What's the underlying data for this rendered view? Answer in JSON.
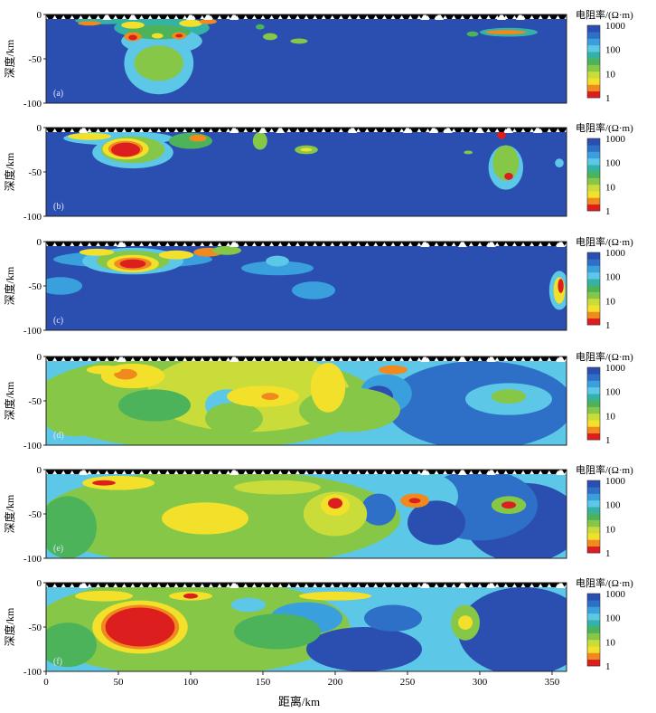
{
  "figure": {
    "xlabel": "距离/km",
    "xticks": [
      "0",
      "50",
      "100",
      "150",
      "200",
      "250",
      "300",
      "350"
    ],
    "xlim": [
      0,
      360
    ]
  },
  "colors": {
    "scale": [
      "#dc1e1e",
      "#f08a1e",
      "#f2e02a",
      "#c9dc3a",
      "#86c748",
      "#4cb35a",
      "#33b3a6",
      "#5cc7e6",
      "#3aa0dd",
      "#2e6fc7",
      "#2a4fb0"
    ]
  },
  "chart_data": [
    {
      "type": "heatmap",
      "panel_label": "(a)",
      "ylabel": "深度/km",
      "yticks": [
        "0",
        "-50",
        "-100"
      ],
      "ylim": [
        -100,
        0
      ],
      "colorbar": {
        "title": "电阻率/(Ω·m)",
        "ticks": [
          "1000",
          "100",
          "10",
          "1"
        ],
        "scale": "log",
        "range": [
          1,
          1000
        ]
      },
      "stations_km": [
        42,
        60,
        100,
        112,
        130,
        262,
        272,
        315,
        328
      ],
      "background": "#2a4fb0",
      "features": [
        {
          "x": 40,
          "y": -7,
          "rx": 20,
          "ry": 4,
          "fill": "#33b3a6"
        },
        {
          "x": 30,
          "y": -10,
          "rx": 8,
          "ry": 2.5,
          "fill": "#f08a1e"
        },
        {
          "x": 80,
          "y": -15,
          "rx": 33,
          "ry": 13,
          "fill": "#33b3a6"
        },
        {
          "x": 80,
          "y": -30,
          "rx": 28,
          "ry": 15,
          "fill": "#5cc7e6"
        },
        {
          "x": 78,
          "y": -55,
          "rx": 24,
          "ry": 35,
          "fill": "#5cc7e6"
        },
        {
          "x": 78,
          "y": -55,
          "rx": 17,
          "ry": 20,
          "fill": "#86c748"
        },
        {
          "x": 78,
          "y": -20,
          "rx": 22,
          "ry": 8,
          "fill": "#4cb35a"
        },
        {
          "x": 60,
          "y": -12,
          "rx": 8,
          "ry": 4,
          "fill": "#f2e02a"
        },
        {
          "x": 60,
          "y": -25,
          "rx": 6,
          "ry": 5,
          "fill": "#f08a1e"
        },
        {
          "x": 60,
          "y": -26,
          "rx": 3,
          "ry": 3,
          "fill": "#dc1e1e"
        },
        {
          "x": 77,
          "y": -24,
          "rx": 4,
          "ry": 3,
          "fill": "#f2e02a"
        },
        {
          "x": 92,
          "y": -24,
          "rx": 5,
          "ry": 4,
          "fill": "#f08a1e"
        },
        {
          "x": 92,
          "y": -24,
          "rx": 2.5,
          "ry": 2,
          "fill": "#dc1e1e"
        },
        {
          "x": 100,
          "y": -10,
          "rx": 8,
          "ry": 4,
          "fill": "#f2e02a"
        },
        {
          "x": 112,
          "y": -8,
          "rx": 6,
          "ry": 3,
          "fill": "#f08a1e"
        },
        {
          "x": 148,
          "y": -14,
          "rx": 3,
          "ry": 3,
          "fill": "#4cb35a"
        },
        {
          "x": 155,
          "y": -25,
          "rx": 5,
          "ry": 4,
          "fill": "#86c748"
        },
        {
          "x": 175,
          "y": -30,
          "rx": 6,
          "ry": 3,
          "fill": "#86c748"
        },
        {
          "x": 295,
          "y": -22,
          "rx": 4,
          "ry": 3,
          "fill": "#4cb35a"
        },
        {
          "x": 320,
          "y": -20,
          "rx": 20,
          "ry": 5,
          "fill": "#33b3a6"
        },
        {
          "x": 318,
          "y": -20,
          "rx": 14,
          "ry": 2.5,
          "fill": "#f08a1e"
        }
      ]
    },
    {
      "type": "heatmap",
      "panel_label": "(b)",
      "ylabel": "深度/km",
      "yticks": [
        "0",
        "-50",
        "-100"
      ],
      "ylim": [
        -100,
        0
      ],
      "colorbar": {
        "title": "电阻率/(Ω·m)",
        "ticks": [
          "1000",
          "100",
          "10",
          "1"
        ],
        "scale": "log",
        "range": [
          1,
          1000
        ]
      },
      "stations_km": [
        26,
        130,
        150,
        162,
        212,
        250,
        268,
        278,
        300,
        320,
        340
      ],
      "background": "#2a4fb0",
      "features": [
        {
          "x": 50,
          "y": -12,
          "rx": 38,
          "ry": 8,
          "fill": "#5cc7e6"
        },
        {
          "x": 60,
          "y": -28,
          "rx": 28,
          "ry": 18,
          "fill": "#5cc7e6"
        },
        {
          "x": 60,
          "y": -25,
          "rx": 22,
          "ry": 15,
          "fill": "#86c748"
        },
        {
          "x": 55,
          "y": -24,
          "rx": 16,
          "ry": 12,
          "fill": "#f2e02a"
        },
        {
          "x": 55,
          "y": -24,
          "rx": 12,
          "ry": 9,
          "fill": "#f08a1e"
        },
        {
          "x": 55,
          "y": -25,
          "rx": 10,
          "ry": 8,
          "fill": "#dc1e1e"
        },
        {
          "x": 30,
          "y": -10,
          "rx": 15,
          "ry": 4,
          "fill": "#f2e02a"
        },
        {
          "x": 100,
          "y": -15,
          "rx": 15,
          "ry": 9,
          "fill": "#4cb35a"
        },
        {
          "x": 105,
          "y": -12,
          "rx": 6,
          "ry": 4,
          "fill": "#f08a1e"
        },
        {
          "x": 148,
          "y": -15,
          "rx": 5,
          "ry": 10,
          "fill": "#86c748"
        },
        {
          "x": 180,
          "y": -25,
          "rx": 8,
          "ry": 5,
          "fill": "#86c748"
        },
        {
          "x": 180,
          "y": -25,
          "rx": 4,
          "ry": 2,
          "fill": "#f2e02a"
        },
        {
          "x": 292,
          "y": -28,
          "rx": 3,
          "ry": 2,
          "fill": "#86c748"
        },
        {
          "x": 318,
          "y": -45,
          "rx": 12,
          "ry": 25,
          "fill": "#5cc7e6"
        },
        {
          "x": 318,
          "y": -40,
          "rx": 9,
          "ry": 20,
          "fill": "#86c748"
        },
        {
          "x": 320,
          "y": -55,
          "rx": 3,
          "ry": 4,
          "fill": "#dc1e1e"
        },
        {
          "x": 315,
          "y": -8,
          "rx": 3,
          "ry": 5,
          "fill": "#dc1e1e"
        },
        {
          "x": 355,
          "y": -40,
          "rx": 3,
          "ry": 5,
          "fill": "#5cc7e6"
        }
      ]
    },
    {
      "type": "heatmap",
      "panel_label": "(c)",
      "ylabel": "深度/km",
      "yticks": [
        "0",
        "-50",
        "-100"
      ],
      "ylim": [
        -100,
        0
      ],
      "colorbar": {
        "title": "电阻率/(Ω·m)",
        "ticks": [
          "1000",
          "100",
          "10",
          "1"
        ],
        "scale": "log",
        "range": [
          1,
          1000
        ]
      },
      "stations_km": [
        52,
        130,
        262,
        288,
        308,
        356
      ],
      "background": "#2a4fb0",
      "features": [
        {
          "x": 60,
          "y": -20,
          "rx": 55,
          "ry": 10,
          "fill": "#3aa0dd"
        },
        {
          "x": 10,
          "y": -50,
          "rx": 15,
          "ry": 10,
          "fill": "#3aa0dd"
        },
        {
          "x": 160,
          "y": -30,
          "rx": 25,
          "ry": 8,
          "fill": "#3aa0dd"
        },
        {
          "x": 185,
          "y": -55,
          "rx": 15,
          "ry": 10,
          "fill": "#3aa0dd"
        },
        {
          "x": 60,
          "y": -22,
          "rx": 35,
          "ry": 15,
          "fill": "#5cc7e6"
        },
        {
          "x": 60,
          "y": -22,
          "rx": 25,
          "ry": 12,
          "fill": "#86c748"
        },
        {
          "x": 60,
          "y": -25,
          "rx": 18,
          "ry": 10,
          "fill": "#f2e02a"
        },
        {
          "x": 60,
          "y": -25,
          "rx": 13,
          "ry": 7,
          "fill": "#f08a1e"
        },
        {
          "x": 60,
          "y": -25,
          "rx": 9,
          "ry": 5,
          "fill": "#dc1e1e"
        },
        {
          "x": 35,
          "y": -12,
          "rx": 12,
          "ry": 4,
          "fill": "#f2e02a"
        },
        {
          "x": 90,
          "y": -15,
          "rx": 12,
          "ry": 5,
          "fill": "#f2e02a"
        },
        {
          "x": 112,
          "y": -12,
          "rx": 10,
          "ry": 5,
          "fill": "#f08a1e"
        },
        {
          "x": 125,
          "y": -10,
          "rx": 10,
          "ry": 5,
          "fill": "#86c748"
        },
        {
          "x": 160,
          "y": -22,
          "rx": 8,
          "ry": 6,
          "fill": "#5cc7e6"
        },
        {
          "x": 355,
          "y": -55,
          "rx": 7,
          "ry": 22,
          "fill": "#5cc7e6"
        },
        {
          "x": 355,
          "y": -55,
          "rx": 4,
          "ry": 15,
          "fill": "#f2e02a"
        },
        {
          "x": 356,
          "y": -50,
          "rx": 2,
          "ry": 8,
          "fill": "#dc1e1e"
        }
      ]
    },
    {
      "type": "heatmap",
      "panel_label": "(d)",
      "ylabel": "深度/km",
      "yticks": [
        "0",
        "-50",
        "-100"
      ],
      "ylim": [
        -100,
        0
      ],
      "colorbar": {
        "title": "电阻率/(Ω·m)",
        "ticks": [
          "1000",
          "100",
          "10",
          "1"
        ],
        "scale": "log",
        "range": [
          1,
          1000
        ]
      },
      "stations_km": [
        52,
        130,
        262,
        288,
        308,
        356
      ],
      "background": "#5cc7e6",
      "features": [
        {
          "x": 110,
          "y": -50,
          "rx": 120,
          "ry": 55,
          "fill": "#86c748"
        },
        {
          "x": 140,
          "y": -40,
          "rx": 70,
          "ry": 45,
          "fill": "#c9dc3a"
        },
        {
          "x": 300,
          "y": -55,
          "rx": 65,
          "ry": 50,
          "fill": "#2e6fc7"
        },
        {
          "x": 320,
          "y": -48,
          "rx": 30,
          "ry": 18,
          "fill": "#5cc7e6"
        },
        {
          "x": 320,
          "y": -45,
          "rx": 12,
          "ry": 8,
          "fill": "#86c748"
        },
        {
          "x": 235,
          "y": -42,
          "rx": 18,
          "ry": 22,
          "fill": "#3aa0dd"
        },
        {
          "x": 230,
          "y": -45,
          "rx": 10,
          "ry": 12,
          "fill": "#2a4fb0"
        },
        {
          "x": 210,
          "y": -60,
          "rx": 35,
          "ry": 25,
          "fill": "#86c748"
        },
        {
          "x": 125,
          "y": -55,
          "rx": 15,
          "ry": 18,
          "fill": "#5cc7e6"
        },
        {
          "x": 130,
          "y": -70,
          "rx": 20,
          "ry": 18,
          "fill": "#86c748"
        },
        {
          "x": 60,
          "y": -22,
          "rx": 22,
          "ry": 14,
          "fill": "#f2e02a"
        },
        {
          "x": 55,
          "y": -20,
          "rx": 8,
          "ry": 6,
          "fill": "#f08a1e"
        },
        {
          "x": 40,
          "y": -15,
          "rx": 12,
          "ry": 5,
          "fill": "#f2e02a"
        },
        {
          "x": 195,
          "y": -35,
          "rx": 12,
          "ry": 28,
          "fill": "#f2e02a"
        },
        {
          "x": 150,
          "y": -45,
          "rx": 25,
          "ry": 12,
          "fill": "#f2e02a"
        },
        {
          "x": 155,
          "y": -45,
          "rx": 6,
          "ry": 4,
          "fill": "#f08a1e"
        },
        {
          "x": 240,
          "y": -15,
          "rx": 10,
          "ry": 5,
          "fill": "#f08a1e"
        },
        {
          "x": 75,
          "y": -55,
          "rx": 25,
          "ry": 18,
          "fill": "#4cb35a"
        },
        {
          "x": 20,
          "y": -60,
          "rx": 25,
          "ry": 30,
          "fill": "#86c748"
        }
      ]
    },
    {
      "type": "heatmap",
      "panel_label": "(e)",
      "ylabel": "深度/km",
      "yticks": [
        "0",
        "-50",
        "-100"
      ],
      "ylim": [
        -100,
        0
      ],
      "colorbar": {
        "title": "电阻率/(Ω·m)",
        "ticks": [
          "1000",
          "100",
          "10",
          "1"
        ],
        "scale": "log",
        "range": [
          1,
          1000
        ]
      },
      "stations_km": [
        26,
        130,
        262,
        288,
        308,
        356
      ],
      "background": "#5cc7e6",
      "features": [
        {
          "x": 120,
          "y": -55,
          "rx": 125,
          "ry": 55,
          "fill": "#86c748"
        },
        {
          "x": 330,
          "y": -60,
          "rx": 40,
          "ry": 45,
          "fill": "#2a4fb0"
        },
        {
          "x": 300,
          "y": -40,
          "rx": 40,
          "ry": 40,
          "fill": "#2e6fc7"
        },
        {
          "x": 265,
          "y": -30,
          "rx": 20,
          "ry": 25,
          "fill": "#5cc7e6"
        },
        {
          "x": 270,
          "y": -60,
          "rx": 20,
          "ry": 25,
          "fill": "#2a4fb0"
        },
        {
          "x": 230,
          "y": -45,
          "rx": 12,
          "ry": 18,
          "fill": "#2e6fc7"
        },
        {
          "x": 200,
          "y": -50,
          "rx": 22,
          "ry": 25,
          "fill": "#c9dc3a"
        },
        {
          "x": 200,
          "y": -40,
          "rx": 10,
          "ry": 12,
          "fill": "#f2e02a"
        },
        {
          "x": 200,
          "y": -38,
          "rx": 5,
          "ry": 6,
          "fill": "#dc1e1e"
        },
        {
          "x": 255,
          "y": -35,
          "rx": 10,
          "ry": 8,
          "fill": "#f08a1e"
        },
        {
          "x": 255,
          "y": -35,
          "rx": 4,
          "ry": 3,
          "fill": "#dc1e1e"
        },
        {
          "x": 320,
          "y": -40,
          "rx": 12,
          "ry": 10,
          "fill": "#86c748"
        },
        {
          "x": 320,
          "y": -40,
          "rx": 5,
          "ry": 4,
          "fill": "#dc1e1e"
        },
        {
          "x": 110,
          "y": -55,
          "rx": 30,
          "ry": 18,
          "fill": "#f2e02a"
        },
        {
          "x": 50,
          "y": -15,
          "rx": 25,
          "ry": 8,
          "fill": "#f2e02a"
        },
        {
          "x": 40,
          "y": -15,
          "rx": 8,
          "ry": 3,
          "fill": "#dc1e1e"
        },
        {
          "x": 160,
          "y": -20,
          "rx": 30,
          "ry": 8,
          "fill": "#c9dc3a"
        },
        {
          "x": 15,
          "y": -65,
          "rx": 20,
          "ry": 35,
          "fill": "#4cb35a"
        }
      ]
    },
    {
      "type": "heatmap",
      "panel_label": "(f)",
      "ylabel": "深度/km",
      "yticks": [
        "0",
        "-50",
        "-100"
      ],
      "ylim": [
        -100,
        0
      ],
      "colorbar": {
        "title": "电阻率/(Ω·m)",
        "ticks": [
          "1000",
          "100",
          "10",
          "1"
        ],
        "scale": "log",
        "range": [
          1,
          1000
        ]
      },
      "stations_km": [
        26,
        130,
        262,
        288,
        308,
        356
      ],
      "background": "#5cc7e6",
      "features": [
        {
          "x": 100,
          "y": -50,
          "rx": 110,
          "ry": 55,
          "fill": "#86c748"
        },
        {
          "x": 330,
          "y": -55,
          "rx": 45,
          "ry": 50,
          "fill": "#2a4fb0"
        },
        {
          "x": 220,
          "y": -75,
          "rx": 40,
          "ry": 25,
          "fill": "#2a4fb0"
        },
        {
          "x": 180,
          "y": -40,
          "rx": 25,
          "ry": 18,
          "fill": "#3aa0dd"
        },
        {
          "x": 240,
          "y": -40,
          "rx": 20,
          "ry": 15,
          "fill": "#2e6fc7"
        },
        {
          "x": 290,
          "y": -45,
          "rx": 10,
          "ry": 20,
          "fill": "#86c748"
        },
        {
          "x": 290,
          "y": -45,
          "rx": 5,
          "ry": 8,
          "fill": "#f2e02a"
        },
        {
          "x": 65,
          "y": -50,
          "rx": 33,
          "ry": 30,
          "fill": "#f2e02a"
        },
        {
          "x": 65,
          "y": -50,
          "rx": 27,
          "ry": 25,
          "fill": "#f08a1e"
        },
        {
          "x": 65,
          "y": -50,
          "rx": 24,
          "ry": 22,
          "fill": "#dc1e1e"
        },
        {
          "x": 40,
          "y": -15,
          "rx": 20,
          "ry": 6,
          "fill": "#f2e02a"
        },
        {
          "x": 100,
          "y": -15,
          "rx": 15,
          "ry": 5,
          "fill": "#f2e02a"
        },
        {
          "x": 100,
          "y": -15,
          "rx": 5,
          "ry": 3,
          "fill": "#dc1e1e"
        },
        {
          "x": 140,
          "y": -25,
          "rx": 12,
          "ry": 8,
          "fill": "#5cc7e6"
        },
        {
          "x": 200,
          "y": -15,
          "rx": 25,
          "ry": 5,
          "fill": "#f2e02a"
        },
        {
          "x": 15,
          "y": -70,
          "rx": 20,
          "ry": 25,
          "fill": "#4cb35a"
        },
        {
          "x": 160,
          "y": -55,
          "rx": 30,
          "ry": 20,
          "fill": "#4cb35a"
        }
      ]
    }
  ]
}
